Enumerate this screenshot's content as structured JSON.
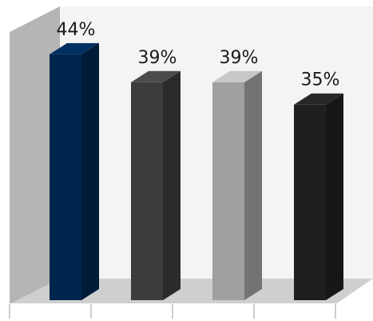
{
  "chart_data": {
    "type": "bar",
    "categories": [
      "",
      "",
      "",
      ""
    ],
    "values": [
      44,
      39,
      39,
      35
    ],
    "value_labels": [
      "44%",
      "39%",
      "39%",
      "35%"
    ],
    "ylim": [
      0,
      50
    ],
    "grid": false,
    "legend": "none",
    "style": "3d-column"
  },
  "colors": {
    "bars": [
      "#00264d",
      "#3c3c3c",
      "#a0a0a0",
      "#1f1f1f"
    ],
    "wall": "#f4f4f4",
    "side_wall": "#b5b5b5",
    "floor": "#cfcfcf",
    "background": "#ffffff"
  }
}
